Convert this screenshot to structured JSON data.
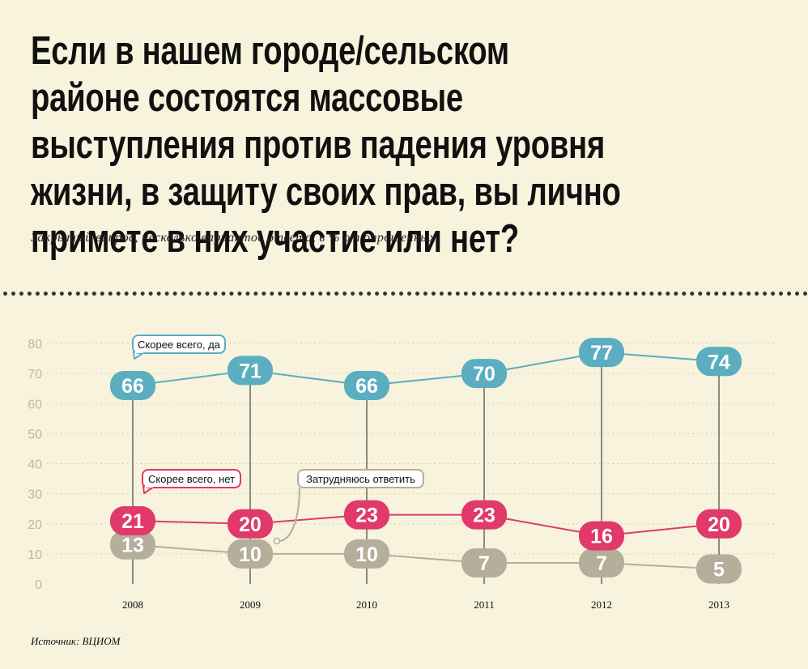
{
  "title": "Если в нашем городе/сельском районе состоятся массовые выступления против падения уровня жизни, в защиту своих прав, вы лично примете в них участие или нет?",
  "subtitle": "Закрытый вопрос, несколько вариантов ответа, в % от опрошенных",
  "source": "Источник: ВЦИОМ",
  "chart_data": {
    "type": "line",
    "title": "",
    "xlabel": "",
    "ylabel": "",
    "x": [
      "2008",
      "2009",
      "2010",
      "2011",
      "2012",
      "2013"
    ],
    "ylim": [
      0,
      80
    ],
    "yticks": [
      0,
      10,
      20,
      30,
      40,
      50,
      60,
      70,
      80
    ],
    "grid": true,
    "series": [
      {
        "name": "Скорее всего, да",
        "color": "#5aaec0",
        "values": [
          66,
          71,
          66,
          70,
          77,
          74
        ]
      },
      {
        "name": "Скорее всего, нет",
        "color": "#e0396a",
        "values": [
          21,
          20,
          23,
          23,
          16,
          20
        ]
      },
      {
        "name": "Затрудняюсь ответить",
        "color": "#b4ae9a",
        "values": [
          13,
          10,
          10,
          7,
          7,
          5
        ]
      }
    ]
  }
}
